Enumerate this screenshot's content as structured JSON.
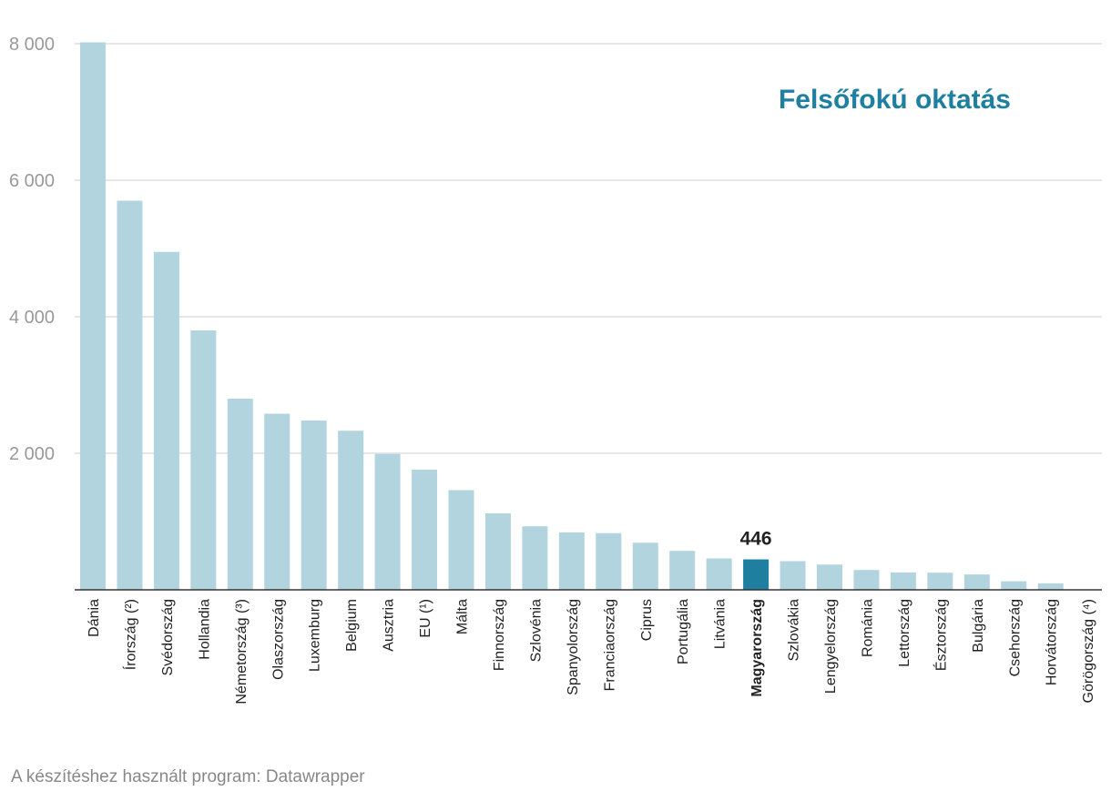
{
  "chart_data": {
    "type": "bar",
    "title": "Felsőfokú oktatás",
    "xlabel": "",
    "ylabel": "",
    "ylim": [
      0,
      8000
    ],
    "yticks": [
      2000,
      4000,
      6000,
      8000
    ],
    "ytick_labels": [
      "2 000",
      "4 000",
      "6 000",
      "8 000"
    ],
    "categories": [
      "Dánia",
      "Írország (²)",
      "Svédország",
      "Hollandia",
      "Németország (³)",
      "Olaszország",
      "Luxemburg",
      "Belgium",
      "Ausztria",
      "EU (¹)",
      "Málta",
      "Finnország",
      "Szlovénia",
      "Spanyolország",
      "Franciaország",
      "Ciprus",
      "Portugália",
      "Litvánia",
      "Magyarország",
      "Szlovákia",
      "Lengyelország",
      "Románia",
      "Lettország",
      "Észtország",
      "Bulgária",
      "Csehország",
      "Horvátország",
      "Görögország (⁴)"
    ],
    "values": [
      8020,
      5700,
      4950,
      3800,
      2800,
      2580,
      2480,
      2330,
      1990,
      1760,
      1460,
      1120,
      930,
      840,
      830,
      690,
      570,
      460,
      446,
      420,
      370,
      290,
      255,
      250,
      225,
      125,
      95,
      0
    ],
    "highlight_index": 18,
    "highlight_label": "446",
    "colors": {
      "bar": "#b2d4de",
      "highlight": "#1f7fa0",
      "title": "#1f7fa0",
      "grid": "#dddddd",
      "axis": "#333333",
      "tick": "#999999",
      "label": "#222222"
    }
  },
  "footer": {
    "credit": "A készítéshez használt program: Datawrapper"
  }
}
